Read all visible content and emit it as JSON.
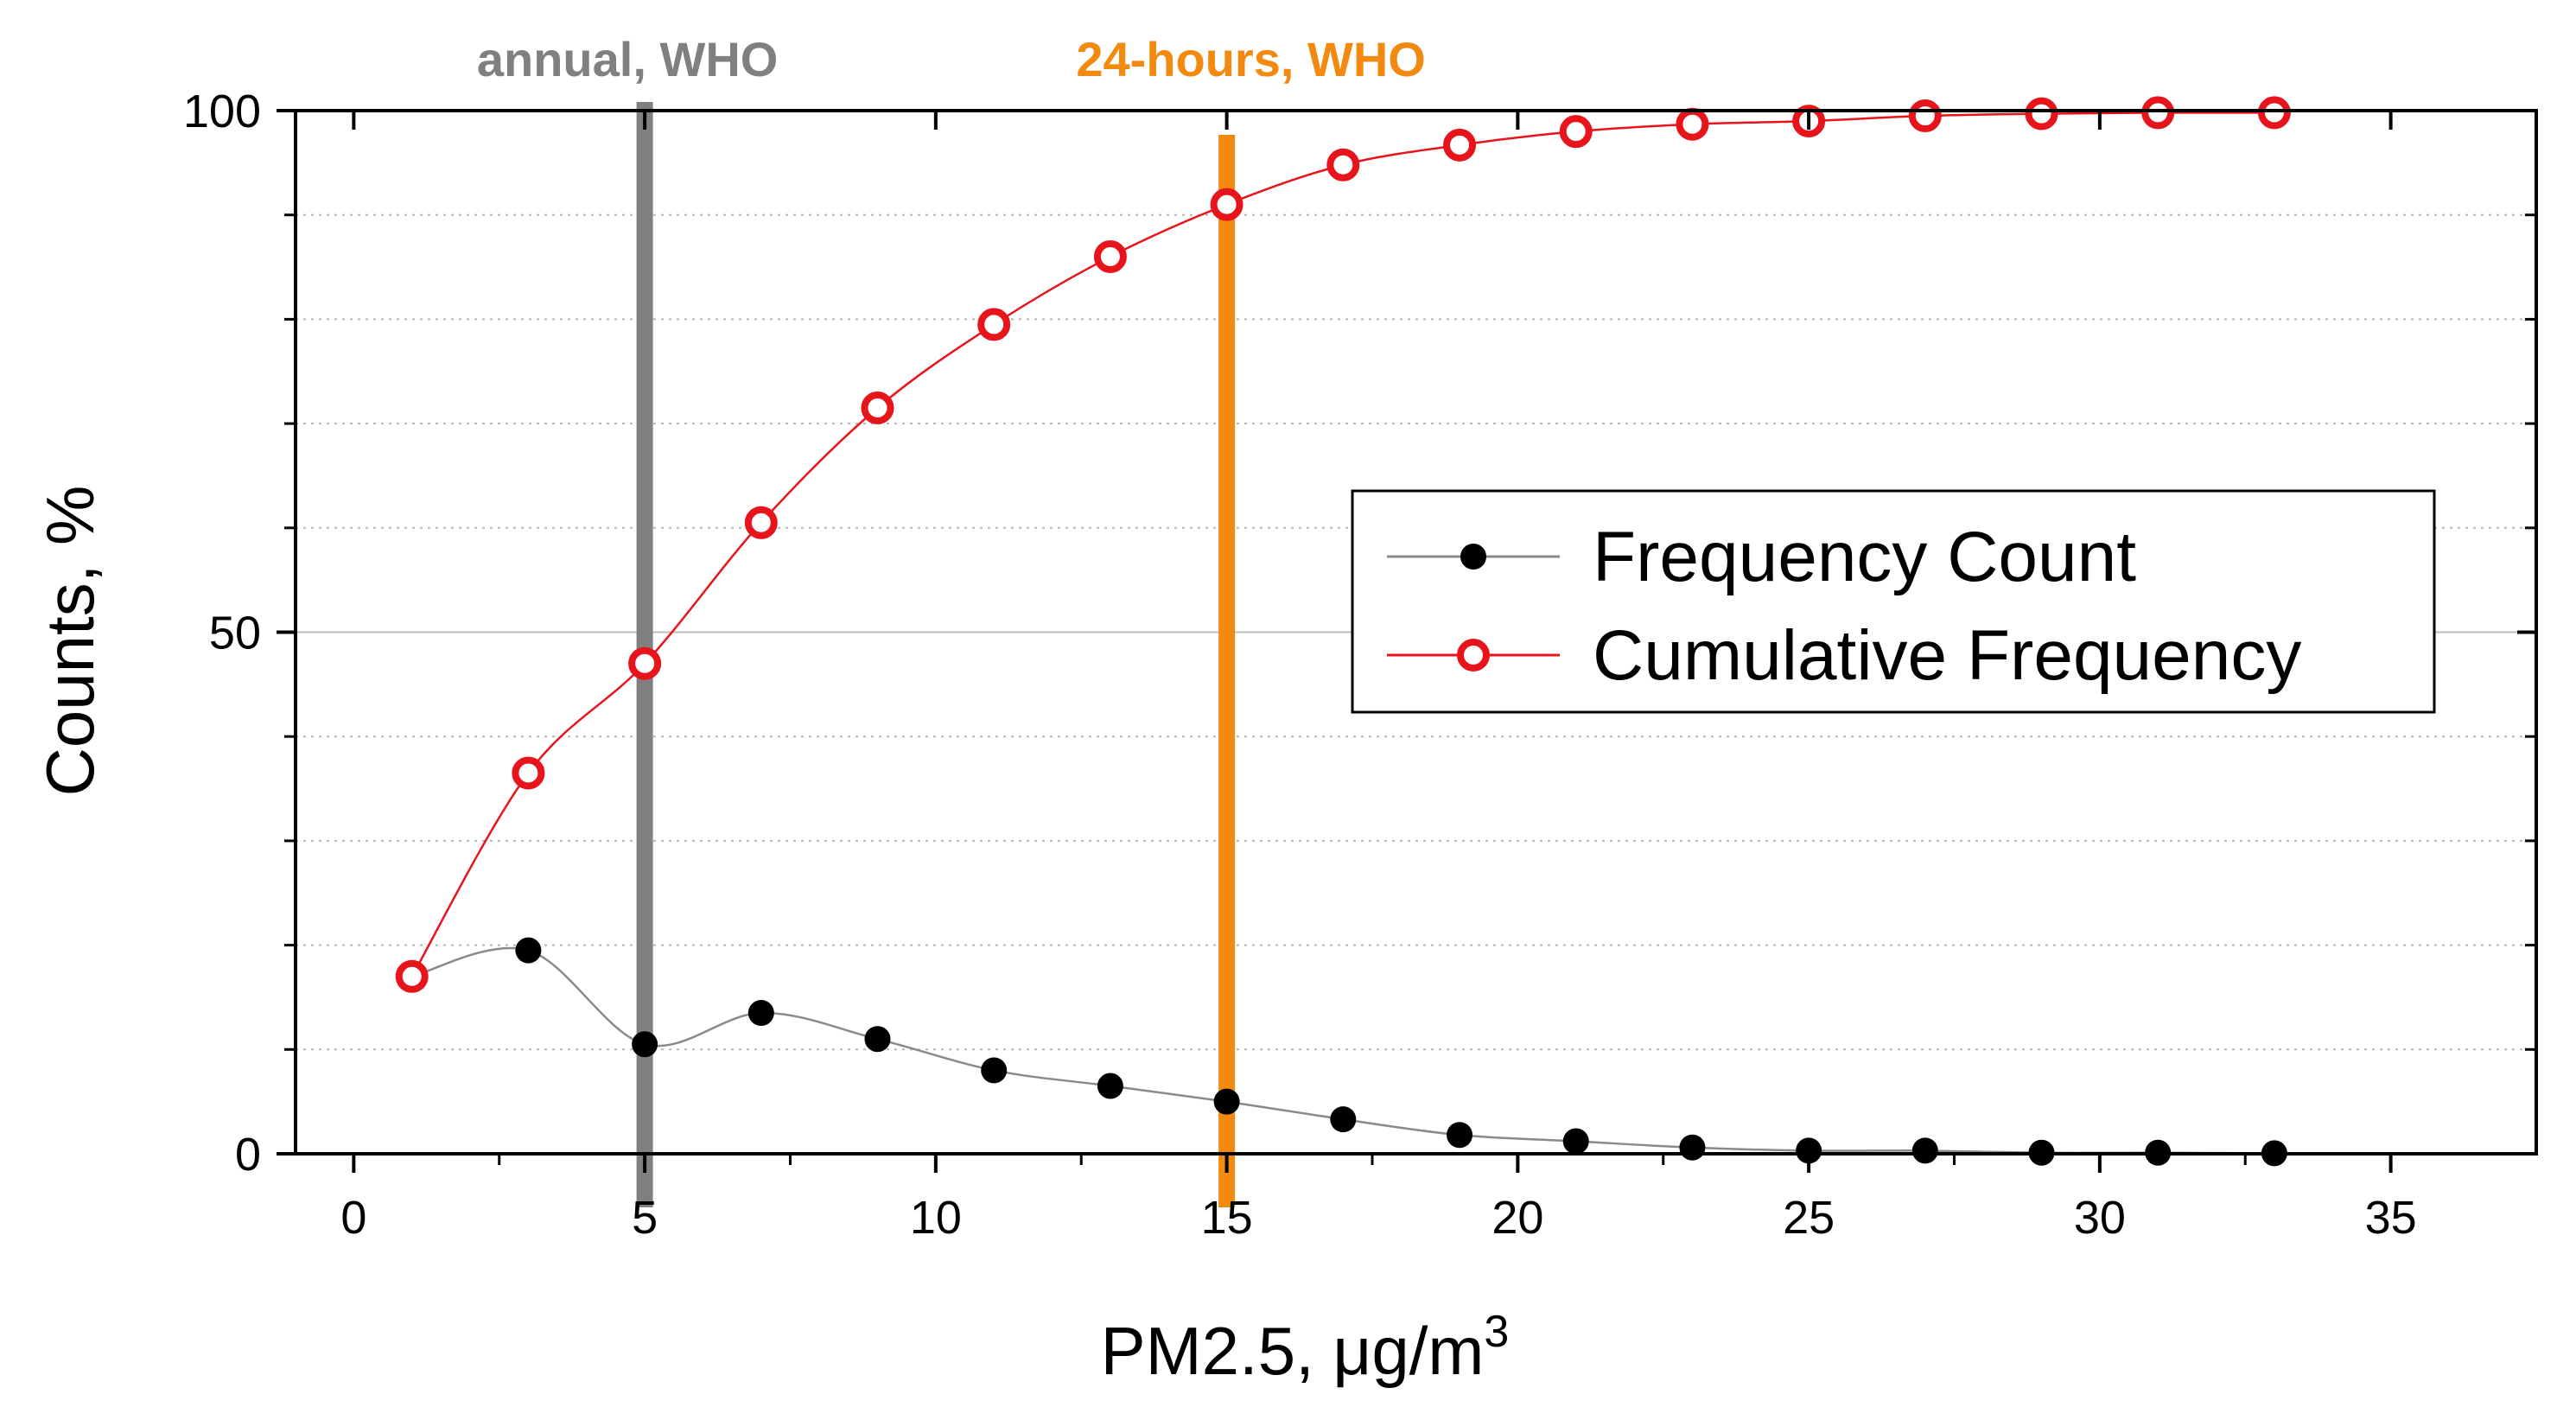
{
  "chart_data": {
    "type": "line",
    "xlabel": "PM2.5, μg/m",
    "xlabel_superscript": "3",
    "ylabel": "Counts, %",
    "xlim": [
      -1,
      37.5
    ],
    "ylim": [
      0,
      100
    ],
    "x_ticks": [
      0,
      5,
      10,
      15,
      20,
      25,
      30,
      35
    ],
    "y_ticks": [
      0,
      50,
      100
    ],
    "y_minor_gridlines": [
      10,
      20,
      30,
      40,
      60,
      70,
      80,
      90
    ],
    "y_major_gridlines": [
      50
    ],
    "legend_position": "center-right",
    "x": [
      1,
      3,
      5,
      7,
      9,
      11,
      13,
      15,
      17,
      19,
      21,
      23,
      25,
      27,
      29,
      31,
      33
    ],
    "series": [
      {
        "name": "Frequency Count",
        "marker": "filled-circle",
        "marker_color": "#000000",
        "line_color": "#8a8a8a",
        "values": [
          17,
          19.5,
          10.5,
          13.5,
          11,
          8,
          6.5,
          5,
          3.3,
          1.8,
          1.2,
          0.6,
          0.3,
          0.3,
          0.1,
          0.1,
          0.05
        ]
      },
      {
        "name": "Cumulative Frequency",
        "marker": "open-circle",
        "marker_color": "#e8141c",
        "line_color": "#e8141c",
        "values": [
          17,
          36.5,
          47,
          60.5,
          71.5,
          79.5,
          86,
          91,
          94.8,
          96.7,
          98,
          98.7,
          99,
          99.5,
          99.7,
          99.8,
          99.8
        ]
      }
    ],
    "reference_lines": [
      {
        "x": 5,
        "label": "annual, WHO",
        "color": "#808080"
      },
      {
        "x": 15,
        "label": "24-hours, WHO",
        "color": "#f28a10"
      }
    ]
  }
}
